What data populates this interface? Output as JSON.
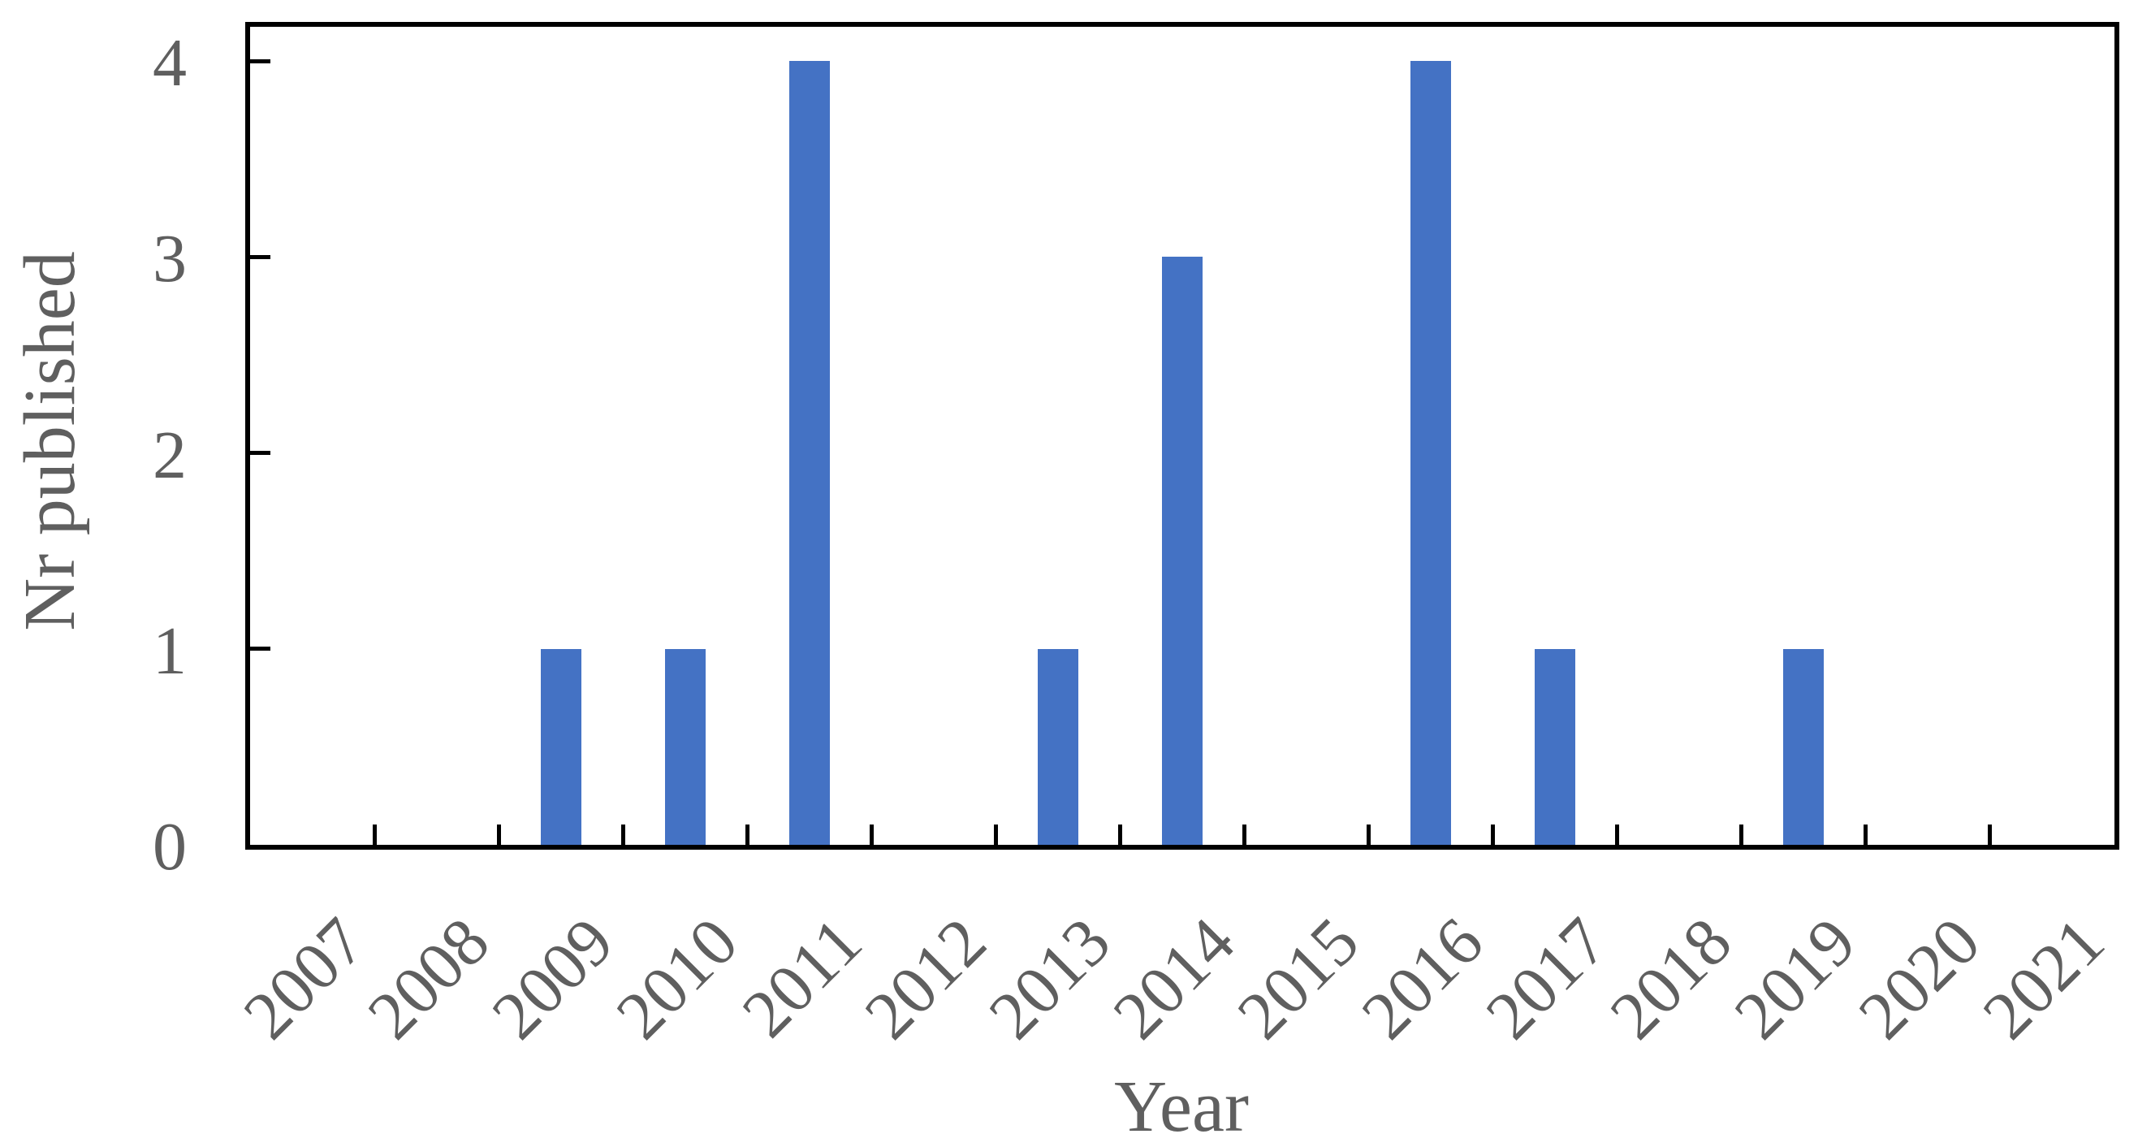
{
  "chart_data": {
    "type": "bar",
    "categories": [
      "2007",
      "2008",
      "2009",
      "2010",
      "2011",
      "2012",
      "2013",
      "2014",
      "2015",
      "2016",
      "2017",
      "2018",
      "2019",
      "2020",
      "2021"
    ],
    "values": [
      0,
      0,
      1,
      1,
      4,
      0,
      1,
      3,
      0,
      4,
      1,
      0,
      1,
      0,
      0
    ],
    "xlabel": "Year",
    "ylabel": "Nr published",
    "y_ticks": [
      0,
      1,
      2,
      3,
      4
    ],
    "ylim": [
      0,
      4.2
    ],
    "x_tick_rotation_deg": -45,
    "grid": false,
    "legend": false,
    "bar_color": "#4472C4",
    "axis_color": "#000000",
    "label_color": "#5f5f5f"
  }
}
